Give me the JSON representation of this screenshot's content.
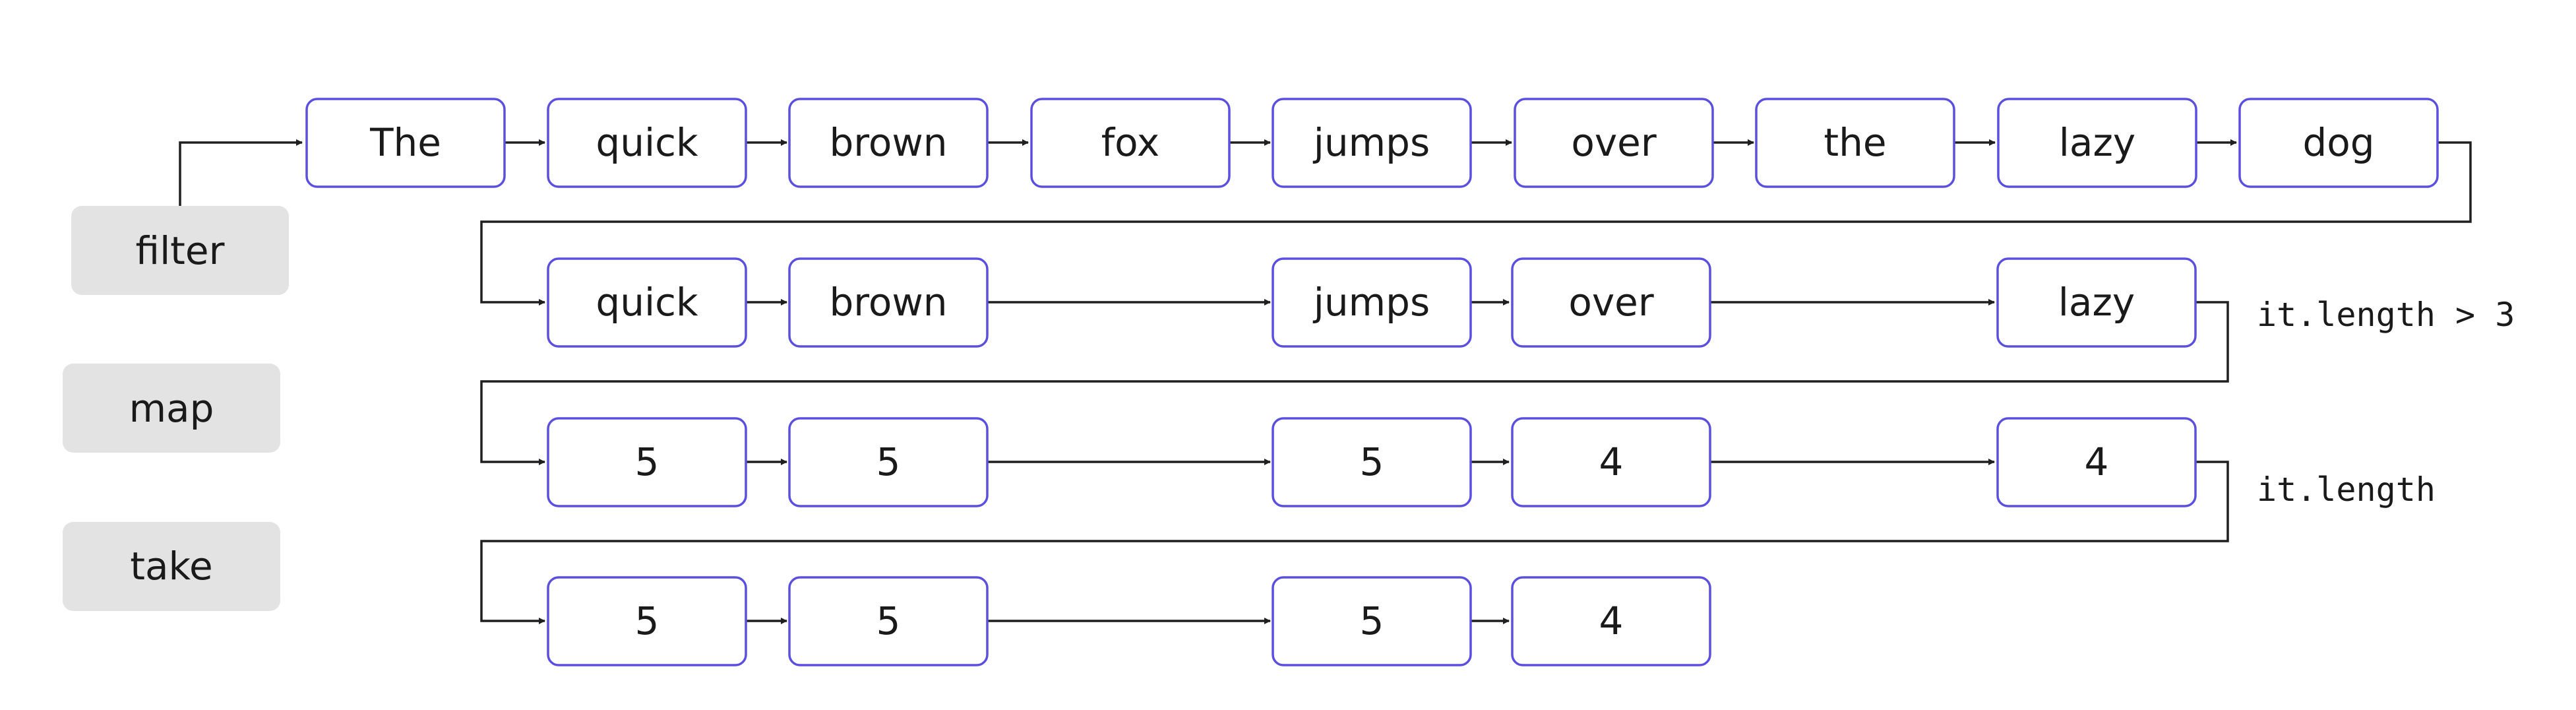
{
  "operations": {
    "filter": "filter",
    "map": "map",
    "take": "take"
  },
  "rows": [
    [
      "The",
      "quick",
      "brown",
      "fox",
      "jumps",
      "over",
      "the",
      "lazy",
      "dog"
    ],
    [
      "quick",
      "brown",
      "jumps",
      "over",
      "lazy"
    ],
    [
      "5",
      "5",
      "5",
      "4",
      "4"
    ],
    [
      "5",
      "5",
      "5",
      "4"
    ]
  ],
  "annotations": {
    "filter_predicate": "it.length > 3",
    "map_transform": "it.length"
  },
  "colors": {
    "node_border": "#5b4fe0",
    "op_fill": "#e3e3e3",
    "line": "#1f1f1f",
    "text": "#1a1a1a"
  }
}
